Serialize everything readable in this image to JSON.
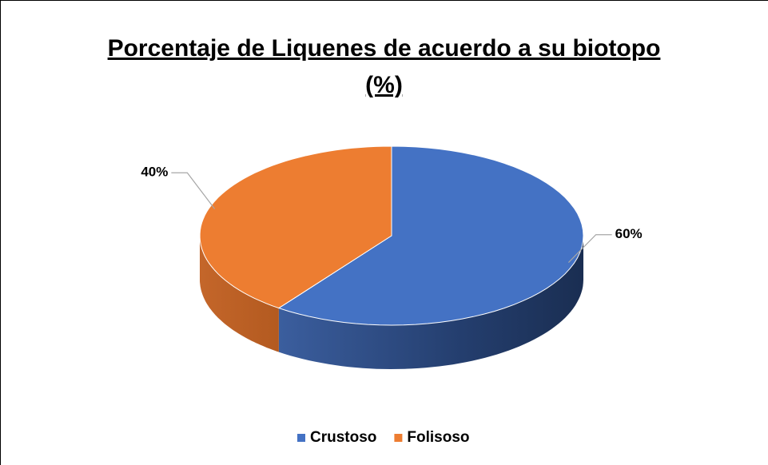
{
  "chart_data": {
    "type": "pie3d",
    "title": "Porcentaje de Liquenes de acuerdo a su biotopo (%)",
    "categories": [
      "Crustoso",
      "Folisoso"
    ],
    "values": [
      60,
      40
    ],
    "value_labels": [
      "60%",
      "40%"
    ],
    "colors": [
      "#4472c4",
      "#ed7d31"
    ],
    "legend": "bottom"
  }
}
